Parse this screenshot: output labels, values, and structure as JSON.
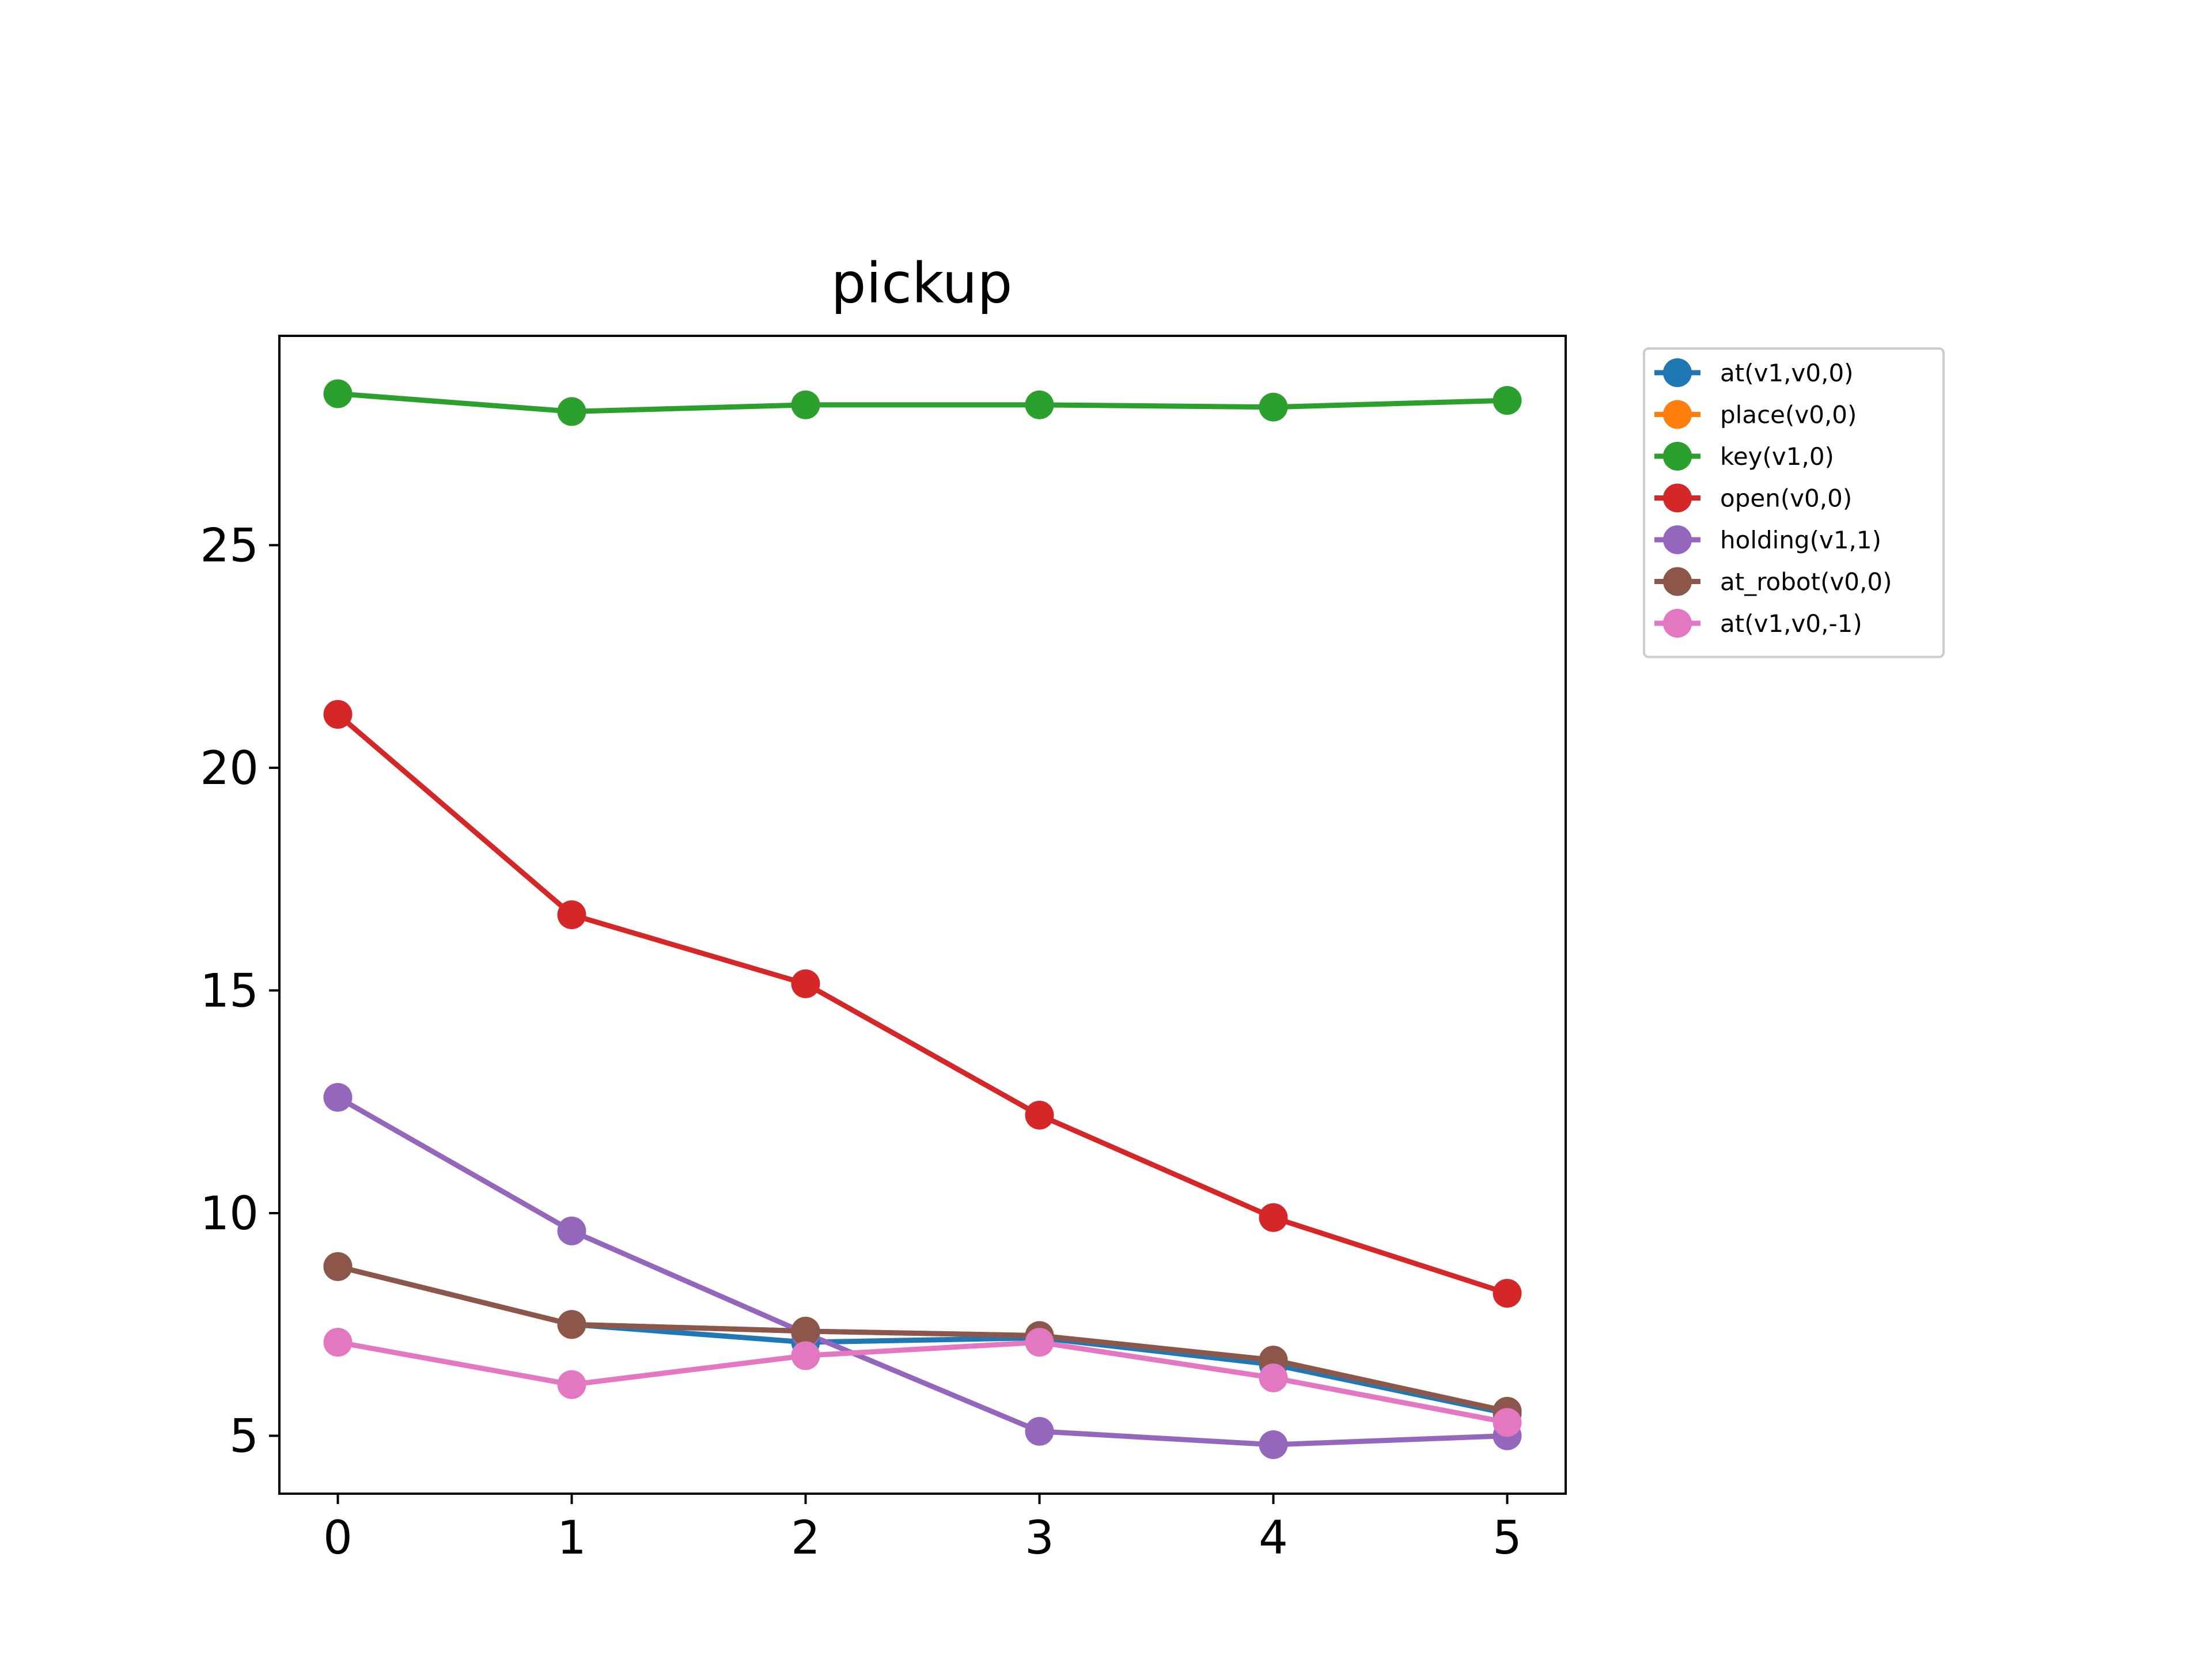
{
  "chart_data": {
    "type": "line",
    "title": "pickup",
    "xlabel": "",
    "ylabel": "",
    "x": [
      0,
      1,
      2,
      3,
      4,
      5
    ],
    "xlim": [
      -0.25,
      5.25
    ],
    "ylim": [
      3.7,
      29.7
    ],
    "xticks": [
      "0",
      "1",
      "2",
      "3",
      "4",
      "5"
    ],
    "yticks": [
      5,
      10,
      15,
      20,
      25
    ],
    "grid": false,
    "legend_position": "outside-right-top",
    "series": [
      {
        "name": "at(v1,v0,0)",
        "color": "#1f77b4",
        "values": [
          8.8,
          7.5,
          7.1,
          7.2,
          6.6,
          5.5
        ]
      },
      {
        "name": "place(v0,0)",
        "color": "#ff7f0e",
        "values": [
          8.8,
          7.5,
          7.35,
          7.25,
          6.7,
          5.55
        ]
      },
      {
        "name": "key(v1,0)",
        "color": "#2ca02c",
        "values": [
          28.4,
          28.0,
          28.15,
          28.15,
          28.1,
          28.25
        ]
      },
      {
        "name": "open(v0,0)",
        "color": "#d62728",
        "values": [
          21.2,
          16.7,
          15.15,
          12.2,
          9.9,
          8.2
        ]
      },
      {
        "name": "holding(v1,1)",
        "color": "#9467bd",
        "values": [
          12.6,
          9.6,
          7.3,
          5.1,
          4.8,
          5.0
        ]
      },
      {
        "name": "at_robot(v0,0)",
        "color": "#8c564b",
        "values": [
          8.8,
          7.5,
          7.35,
          7.25,
          6.7,
          5.55
        ]
      },
      {
        "name": "at(v1,v0,-1)",
        "color": "#e377c2",
        "values": [
          7.1,
          6.15,
          6.8,
          7.1,
          6.3,
          5.3
        ]
      }
    ]
  }
}
